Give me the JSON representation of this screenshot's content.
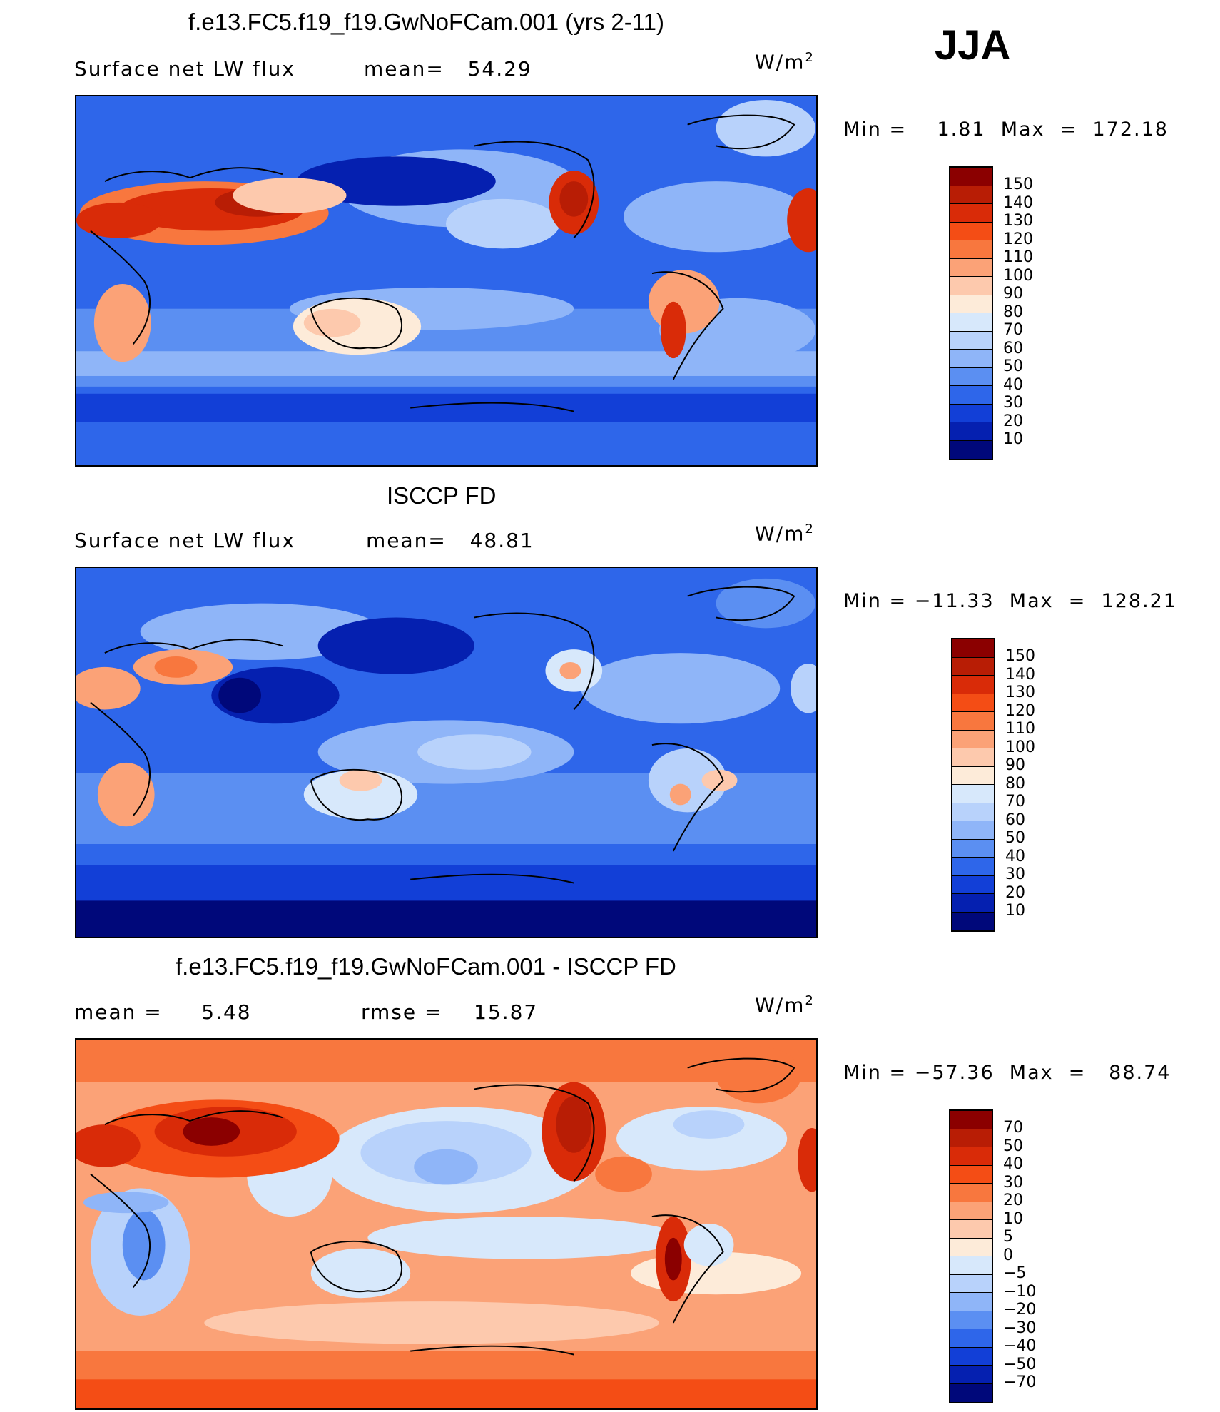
{
  "season": "JJA",
  "panels": [
    {
      "title": "f.e13.FC5.f19_f19.GwNoFCam.001 (yrs 2-11)",
      "left_text": "Surface net LW flux",
      "center_text": "mean=   54.29",
      "units_base": "W/m",
      "units_sup": "2",
      "minmax": "Min =    1.81  Max  =  172.18",
      "levels": [
        "150",
        "140",
        "130",
        "120",
        "110",
        "100",
        "90",
        "80",
        "70",
        "60",
        "50",
        "40",
        "30",
        "20",
        "10"
      ],
      "colors": [
        "#8b0000",
        "#b81d05",
        "#d92b08",
        "#f44d15",
        "#f8773e",
        "#fba277",
        "#fdc9ad",
        "#fdebd9",
        "#d7e8fb",
        "#b8d2fb",
        "#8fb5f8",
        "#5b8ff2",
        "#2e66ea",
        "#123fd7",
        "#0520b0",
        "#00087a"
      ]
    },
    {
      "title": "ISCCP FD",
      "left_text": "Surface net LW flux",
      "center_text": "mean=   48.81",
      "units_base": "W/m",
      "units_sup": "2",
      "minmax": "Min = −11.33  Max  =  128.21",
      "levels": [
        "150",
        "140",
        "130",
        "120",
        "110",
        "100",
        "90",
        "80",
        "70",
        "60",
        "50",
        "40",
        "30",
        "20",
        "10"
      ],
      "colors": [
        "#8b0000",
        "#b81d05",
        "#d92b08",
        "#f44d15",
        "#f8773e",
        "#fba277",
        "#fdc9ad",
        "#fdebd9",
        "#d7e8fb",
        "#b8d2fb",
        "#8fb5f8",
        "#5b8ff2",
        "#2e66ea",
        "#123fd7",
        "#0520b0",
        "#00087a"
      ]
    },
    {
      "title": "f.e13.FC5.f19_f19.GwNoFCam.001 - ISCCP FD",
      "left_text": "mean =     5.48",
      "center_text": "rmse =    15.87",
      "units_base": "W/m",
      "units_sup": "2",
      "minmax": "Min = −57.36  Max  =   88.74",
      "levels": [
        "70",
        "50",
        "40",
        "30",
        "20",
        "10",
        "5",
        "0",
        "−5",
        "−10",
        "−20",
        "−30",
        "−40",
        "−50",
        "−70"
      ],
      "colors": [
        "#8b0000",
        "#b81d05",
        "#d92b08",
        "#f44d15",
        "#f8773e",
        "#fba277",
        "#fdc9ad",
        "#fdebd9",
        "#d7e8fb",
        "#b8d2fb",
        "#8fb5f8",
        "#5b8ff2",
        "#2e66ea",
        "#123fd7",
        "#0520b0",
        "#00087a"
      ]
    }
  ]
}
